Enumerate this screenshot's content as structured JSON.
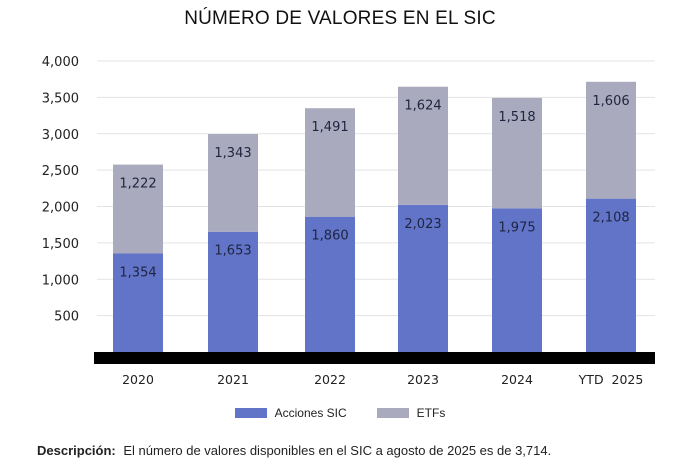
{
  "title": "NÚMERO DE VALORES EN EL SIC",
  "legend": [
    {
      "label": "Acciones SIC",
      "color": "#6174c8"
    },
    {
      "label": "ETFs",
      "color": "#a9aabd"
    }
  ],
  "description": {
    "label": "Descripción:",
    "text": "El número de valores disponibles en el SIC a agosto de 2025 es de 3,714."
  },
  "chart_data": {
    "type": "bar",
    "stacked": true,
    "title": "NÚMERO DE VALORES EN EL SIC",
    "xlabel": "",
    "ylabel": "",
    "categories": [
      "2020",
      "2021",
      "2022",
      "2023",
      "2024",
      "YTD  2025"
    ],
    "series": [
      {
        "name": "Acciones SIC",
        "color": "#6174c8",
        "values": [
          1354,
          1653,
          1860,
          2023,
          1975,
          2108
        ]
      },
      {
        "name": "ETFs",
        "color": "#a9aabd",
        "values": [
          1222,
          1343,
          1491,
          1624,
          1518,
          1606
        ]
      }
    ],
    "ylim": [
      0,
      4000
    ],
    "yticks": [
      500,
      1000,
      1500,
      2000,
      2500,
      3000,
      3500,
      4000
    ],
    "ytick_labels": [
      "500",
      "1,000",
      "1,500",
      "2,000",
      "2,500",
      "3,000",
      "3,500",
      "4,000"
    ],
    "data_labels": [
      [
        "1,354",
        "1,653",
        "1,860",
        "2,023",
        "1,975",
        "2,108"
      ],
      [
        "1,222",
        "1,343",
        "1,491",
        "1,624",
        "1,518",
        "1,606"
      ]
    ],
    "grid": true,
    "legend_position": "bottom-center"
  }
}
